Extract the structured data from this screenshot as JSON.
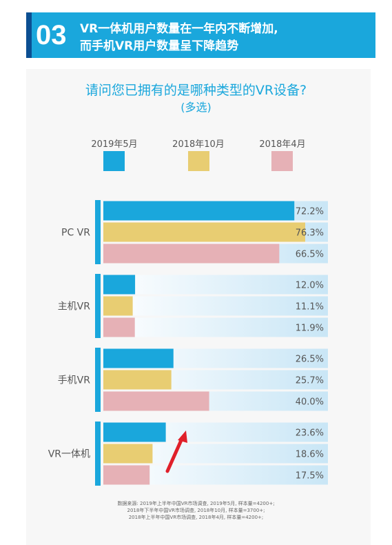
{
  "banner": {
    "number": "03",
    "line1": "VR一体机用户数量在一年内不断增加,",
    "line2": "而手机VR用户数量呈下降趋势"
  },
  "question": {
    "title": "请问您已拥有的是哪种类型的VR设备?",
    "subtitle": "(多选)"
  },
  "footer": {
    "lines": [
      "数据来源: 2019年上半年中国VR市场调查, 2019年5月, 样本量=4200+;",
      "2018年下半年中国VR市场调查, 2018年10月, 样本量=3700+;",
      "2018年上半年中国VR市场调查, 2018年4月, 样本量=4200+;"
    ]
  },
  "colors": {
    "series": [
      "#1aa7dc",
      "#e8cd72",
      "#e6b1b6"
    ],
    "accent": "#1aa7dc",
    "track": "#cfe8f7"
  },
  "chart_data": {
    "type": "bar",
    "orientation": "horizontal",
    "categories": [
      "PC VR",
      "主机VR",
      "手机VR",
      "VR一体机"
    ],
    "series": [
      {
        "name": "2019年5月",
        "values": [
          72.2,
          12.0,
          26.5,
          23.6
        ],
        "labels": [
          "72.2%",
          "12.0%",
          "26.5%",
          "23.6%"
        ]
      },
      {
        "name": "2018年10月",
        "values": [
          76.3,
          11.1,
          25.7,
          18.6
        ],
        "labels": [
          "76.3%",
          "11.1%",
          "25.7%",
          "18.6%"
        ]
      },
      {
        "name": "2018年4月",
        "values": [
          66.5,
          11.9,
          40.0,
          17.5
        ],
        "labels": [
          "66.5%",
          "11.9%",
          "40.0%",
          "17.5%"
        ]
      }
    ],
    "xlim": [
      0,
      100
    ],
    "legend": "top",
    "grid": false,
    "annotations": [
      {
        "type": "arrow",
        "color": "#e0202a",
        "direction": "up-right",
        "near": "VR一体机"
      }
    ]
  }
}
